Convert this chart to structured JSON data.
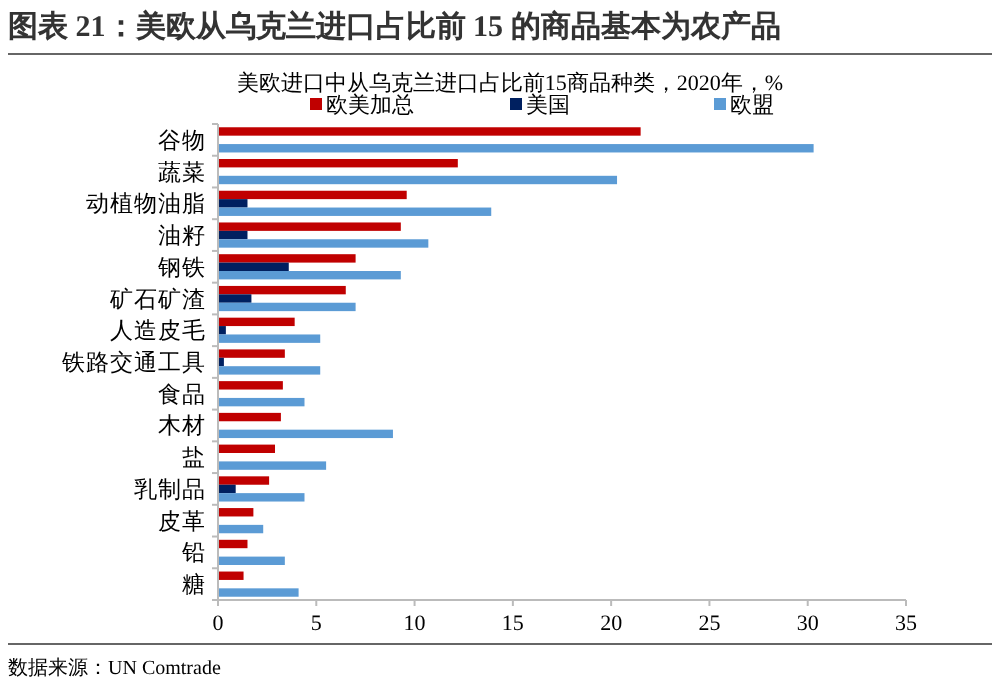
{
  "chart_data": {
    "type": "bar",
    "orientation": "horizontal",
    "title": "图表 21：美欧从乌克兰进口占比前 15 的商品基本为农产品",
    "subtitle": "美欧进口中从乌克兰进口占比前15商品种类，2020年，%",
    "categories": [
      "谷物",
      "蔬菜",
      "动植物油脂",
      "油籽",
      "钢铁",
      "矿石矿渣",
      "人造皮毛",
      "铁路交通工具",
      "食品",
      "木材",
      "盐",
      "乳制品",
      "皮革",
      "铅",
      "糖"
    ],
    "series": [
      {
        "name": "欧美加总",
        "color": "#c00000",
        "values": [
          21.5,
          12.2,
          9.6,
          9.3,
          7.0,
          6.5,
          3.9,
          3.4,
          3.3,
          3.2,
          2.9,
          2.6,
          1.8,
          1.5,
          1.3
        ]
      },
      {
        "name": "美国",
        "color": "#002060",
        "values": [
          null,
          null,
          1.5,
          1.5,
          3.6,
          1.7,
          0.4,
          0.3,
          null,
          null,
          null,
          0.9,
          null,
          null,
          null
        ]
      },
      {
        "name": "欧盟",
        "color": "#5b9bd5",
        "values": [
          30.3,
          20.3,
          13.9,
          10.7,
          9.3,
          7.0,
          5.2,
          5.2,
          4.4,
          8.9,
          5.5,
          4.4,
          2.3,
          3.4,
          4.1
        ]
      }
    ],
    "xlim": [
      0,
      35
    ],
    "xticks": [
      0,
      5,
      10,
      15,
      20,
      25,
      30,
      35
    ],
    "legend": "top",
    "grid": false,
    "annotations": [
      "数据来源：UN Comtrade"
    ]
  }
}
